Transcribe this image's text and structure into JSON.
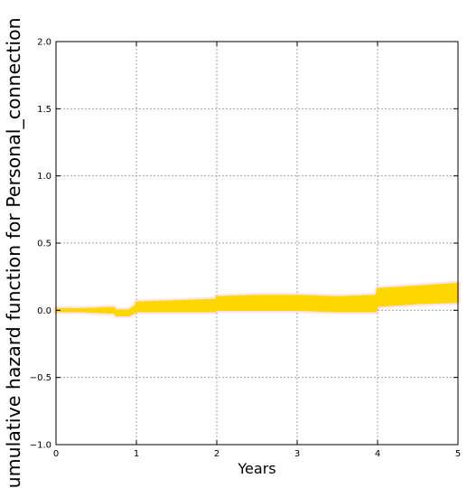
{
  "chart_data": {
    "type": "area",
    "title": "",
    "xlabel": "Years",
    "ylabel": "Cumulative hazard function for Personal_connection",
    "xlim": [
      0,
      5
    ],
    "ylim": [
      -1.0,
      2.0
    ],
    "xticks": [
      0,
      1,
      2,
      3,
      4,
      5
    ],
    "xtick_labels": [
      "0",
      "1",
      "2",
      "3",
      "4",
      "5"
    ],
    "yticks": [
      -1.0,
      -0.5,
      0.0,
      0.5,
      1.0,
      1.5,
      2.0
    ],
    "ytick_labels": [
      "−1.0",
      "−0.5",
      "0.0",
      "0.5",
      "1.0",
      "1.5",
      "2.0"
    ],
    "grid": true,
    "series": [
      {
        "color": "#ffd700",
        "band_color": "#ffb6c1",
        "x": [
          0.0,
          0.3,
          0.5,
          0.65,
          0.72,
          0.75,
          0.9,
          0.98,
          1.0,
          1.5,
          1.98,
          2.0,
          2.5,
          3.0,
          3.5,
          3.98,
          4.0,
          4.5,
          5.0
        ],
        "lower": [
          -0.01,
          -0.01,
          -0.015,
          -0.02,
          -0.02,
          -0.04,
          -0.04,
          -0.02,
          -0.01,
          -0.01,
          -0.01,
          0.0,
          0.0,
          0.0,
          -0.01,
          -0.01,
          0.03,
          0.05,
          0.06
        ],
        "upper": [
          0.01,
          0.01,
          0.015,
          0.02,
          0.02,
          0.0,
          0.0,
          0.03,
          0.06,
          0.07,
          0.08,
          0.1,
          0.11,
          0.11,
          0.1,
          0.11,
          0.16,
          0.18,
          0.2
        ]
      }
    ]
  }
}
